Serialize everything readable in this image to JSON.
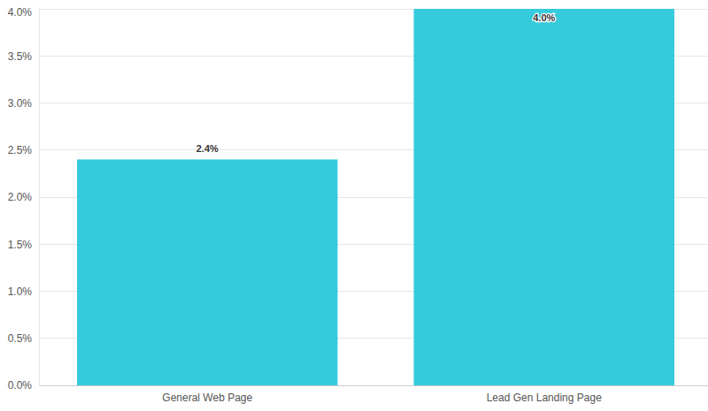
{
  "chart_data": {
    "type": "bar",
    "categories": [
      "General Web Page",
      "Lead Gen Landing Page"
    ],
    "values": [
      2.4,
      4.0
    ],
    "value_labels": [
      "2.4%",
      "4.0%"
    ],
    "data_labels": true,
    "color": "#36cbdc",
    "ylim": [
      0,
      4.0
    ],
    "yticks": [
      {
        "value": 0,
        "label": "0.0%"
      },
      {
        "value": 0.5,
        "label": "0.5%"
      },
      {
        "value": 1.0,
        "label": "1.0%"
      },
      {
        "value": 1.5,
        "label": "1.5%"
      },
      {
        "value": 2.0,
        "label": "2.0%"
      },
      {
        "value": 2.5,
        "label": "2.5%"
      },
      {
        "value": 3.0,
        "label": "3.0%"
      },
      {
        "value": 3.5,
        "label": "3.5%"
      },
      {
        "value": 4.0,
        "label": "4.0%"
      }
    ],
    "grid": true
  }
}
